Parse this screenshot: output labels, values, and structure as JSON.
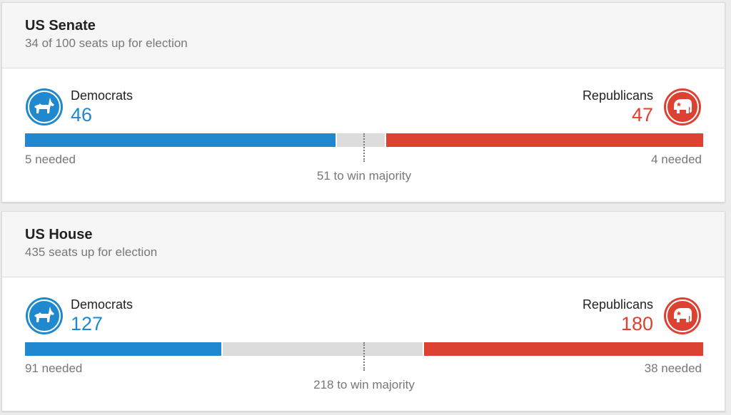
{
  "colors": {
    "democrat": "#1f88cf",
    "republican": "#dd4132",
    "neutral_bar": "#dcdcdc"
  },
  "races": [
    {
      "title": "US Senate",
      "subtitle": "34 of 100 seats up for election",
      "total_seats": 100,
      "democrats": {
        "label": "Democrats",
        "seats": "46",
        "needed": "5 needed",
        "icon": "donkey-icon"
      },
      "republicans": {
        "label": "Republicans",
        "seats": "47",
        "needed": "4 needed",
        "icon": "elephant-icon"
      },
      "majority": "51 to win majority"
    },
    {
      "title": "US House",
      "subtitle": "435 seats up for election",
      "total_seats": 435,
      "democrats": {
        "label": "Democrats",
        "seats": "127",
        "needed": "91 needed",
        "icon": "donkey-icon"
      },
      "republicans": {
        "label": "Republicans",
        "seats": "180",
        "needed": "38 needed",
        "icon": "elephant-icon"
      },
      "majority": "218 to win majority"
    }
  ]
}
